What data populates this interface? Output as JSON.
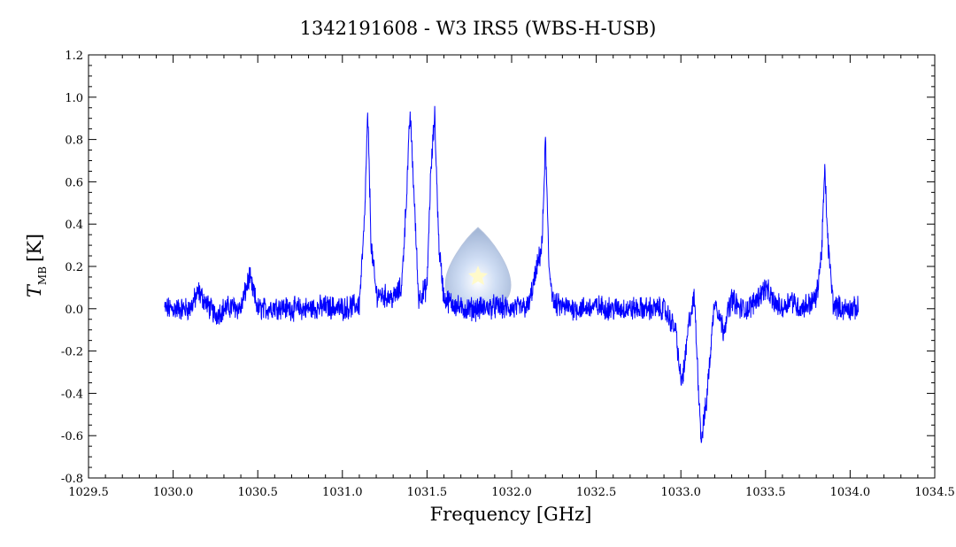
{
  "chart_data": {
    "type": "line",
    "title": "1342191608 - W3 IRS5 (WBS-H-USB)",
    "xlabel": "Frequency [GHz]",
    "ylabel_symbol": "T",
    "ylabel_subscript": "MB",
    "ylabel_unit": "[K]",
    "xlim": [
      1029.5,
      1034.5
    ],
    "ylim": [
      -0.8,
      1.2
    ],
    "x_ticks": [
      "1029.5",
      "1030.0",
      "1030.5",
      "1031.0",
      "1031.5",
      "1032.0",
      "1032.5",
      "1033.0",
      "1033.5",
      "1034.0",
      "1034.5"
    ],
    "y_ticks": [
      "-0.8",
      "-0.6",
      "-0.4",
      "-0.2",
      "0.0",
      "0.2",
      "0.4",
      "0.6",
      "0.8",
      "1.0",
      "1.2"
    ],
    "grid": false,
    "line_color": "#0000ff",
    "series": [
      {
        "x": [
          1029.95,
          1030.05,
          1030.1,
          1030.15,
          1030.2,
          1030.25,
          1030.3,
          1030.35,
          1030.4,
          1030.45,
          1030.5,
          1030.55,
          1030.6,
          1030.7,
          1030.8,
          1030.9,
          1031.0,
          1031.1,
          1031.13,
          1031.15,
          1031.17,
          1031.2,
          1031.3,
          1031.35,
          1031.38,
          1031.4,
          1031.42,
          1031.45,
          1031.5,
          1031.52,
          1031.545,
          1031.57,
          1031.6,
          1031.7,
          1031.8,
          1031.9,
          1032.0,
          1032.1,
          1032.18,
          1032.2,
          1032.22,
          1032.25,
          1032.3,
          1032.4,
          1032.5,
          1032.6,
          1032.7,
          1032.8,
          1032.9,
          1032.97,
          1033.0,
          1033.02,
          1033.05,
          1033.08,
          1033.1,
          1033.12,
          1033.15,
          1033.18,
          1033.2,
          1033.25,
          1033.3,
          1033.35,
          1033.4,
          1033.45,
          1033.5,
          1033.55,
          1033.6,
          1033.65,
          1033.7,
          1033.75,
          1033.8,
          1033.83,
          1033.85,
          1033.87,
          1033.9,
          1033.95,
          1034.0,
          1034.05
        ],
        "y": [
          0.0,
          0.0,
          0.0,
          0.08,
          0.02,
          -0.03,
          0.0,
          0.01,
          0.0,
          0.15,
          0.0,
          0.0,
          0.01,
          0.0,
          0.0,
          0.01,
          0.0,
          0.02,
          0.4,
          0.92,
          0.3,
          0.07,
          0.05,
          0.1,
          0.55,
          0.93,
          0.6,
          0.05,
          0.1,
          0.6,
          0.92,
          0.3,
          0.05,
          0.0,
          0.0,
          0.01,
          0.0,
          0.01,
          0.3,
          0.8,
          0.2,
          0.02,
          0.01,
          0.0,
          0.01,
          0.0,
          0.0,
          0.0,
          0.0,
          -0.1,
          -0.35,
          -0.28,
          -0.05,
          0.05,
          -0.3,
          -0.62,
          -0.45,
          -0.15,
          0.05,
          -0.1,
          0.05,
          0.0,
          0.0,
          0.05,
          0.1,
          0.03,
          0.0,
          0.05,
          0.0,
          0.02,
          0.05,
          0.25,
          0.65,
          0.3,
          0.02,
          0.0,
          0.0,
          0.0
        ]
      }
    ]
  }
}
